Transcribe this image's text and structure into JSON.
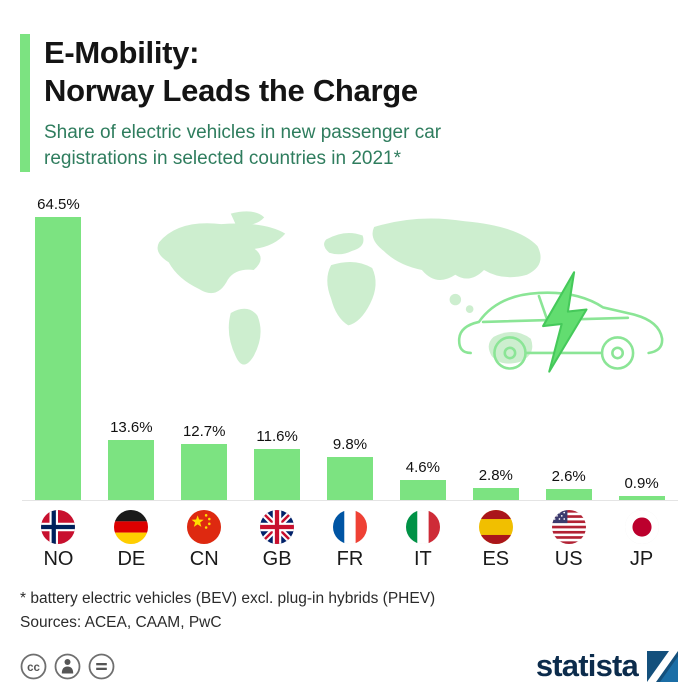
{
  "header": {
    "title_line1": "E-Mobility:",
    "title_line2": "Norway Leads the Charge",
    "subtitle": "Share of electric vehicles in new passenger car registrations in selected countries in 2021*"
  },
  "chart_data": {
    "type": "bar",
    "title": "Share of electric vehicles in new passenger car registrations in selected countries in 2021",
    "unit": "%",
    "categories": [
      "NO",
      "DE",
      "CN",
      "GB",
      "FR",
      "IT",
      "ES",
      "US",
      "JP"
    ],
    "values": [
      64.5,
      13.6,
      12.7,
      11.6,
      9.8,
      4.6,
      2.8,
      2.6,
      0.9
    ],
    "value_labels": [
      "64.5%",
      "13.6%",
      "12.7%",
      "11.6%",
      "9.8%",
      "4.6%",
      "2.8%",
      "2.6%",
      "0.9%"
    ],
    "ylim": [
      0,
      70
    ],
    "grid": false,
    "legend": false,
    "bar_color": "#7ce381",
    "flag_icons": [
      "flag-norway-icon",
      "flag-germany-icon",
      "flag-china-icon",
      "flag-uk-icon",
      "flag-france-icon",
      "flag-italy-icon",
      "flag-spain-icon",
      "flag-us-icon",
      "flag-japan-icon"
    ]
  },
  "background": {
    "decorations": [
      "world-map-background",
      "electric-car-illustration",
      "lightning-bolt-icon"
    ]
  },
  "footer": {
    "footnote": "* battery electric vehicles (BEV) excl. plug-in hybrids (PHEV)",
    "sources": "Sources: ACEA, CAAM, PwC",
    "brand": "statista",
    "license_icons": [
      "cc-icon",
      "cc-attribution-icon",
      "cc-nd-icon"
    ]
  },
  "colors": {
    "accent_green": "#7ce381",
    "subtitle_green": "#2f7d5e",
    "map_green": "#cdeecf",
    "brand_navy": "#0c2c4c"
  }
}
